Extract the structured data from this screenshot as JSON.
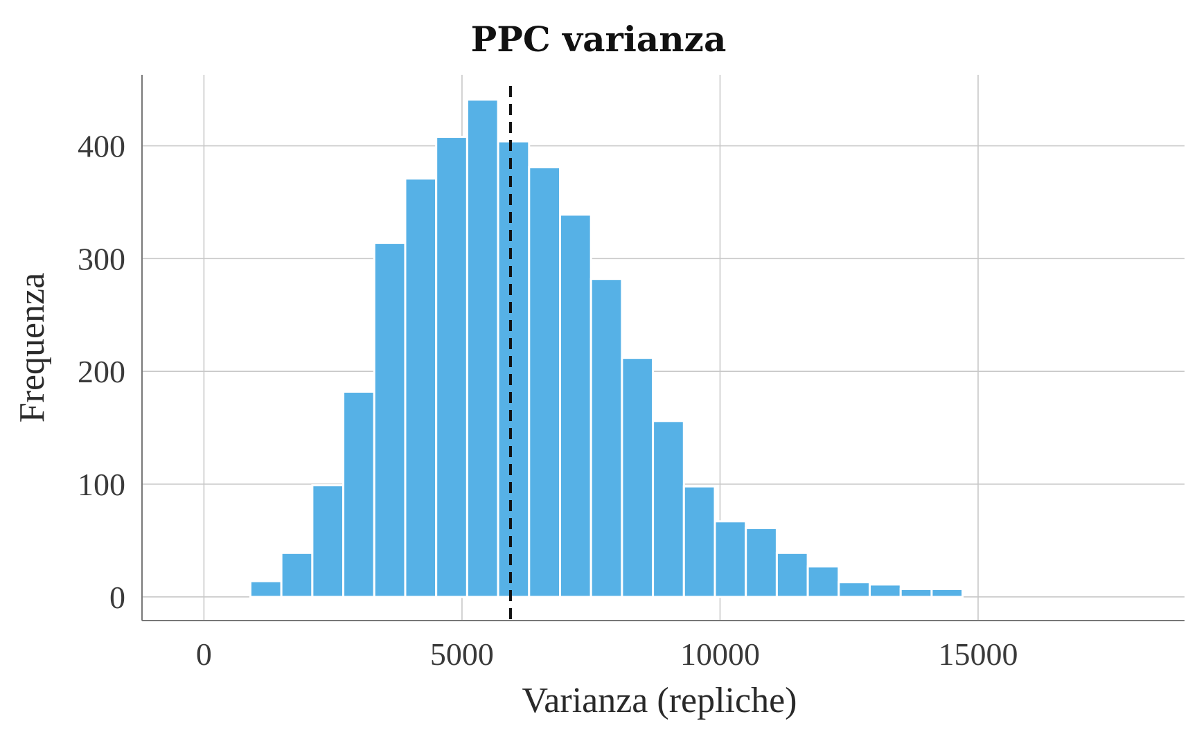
{
  "chart_data": {
    "type": "bar",
    "title": "PPC varianza",
    "xlabel": "Varianza (repliche)",
    "ylabel": "Frequenza",
    "bin_width": 600,
    "bins_start": 900,
    "values": [
      14,
      39,
      99,
      182,
      314,
      371,
      408,
      441,
      404,
      381,
      339,
      282,
      212,
      156,
      98,
      67,
      61,
      39,
      27,
      13,
      11,
      7,
      7
    ],
    "xlim": [
      -1200,
      19000
    ],
    "ylim": [
      -21,
      463
    ],
    "xticks": [
      "0",
      "5000",
      "10000",
      "15000"
    ],
    "xtick_values": [
      0,
      5000,
      10000,
      15000
    ],
    "yticks": [
      "0",
      "100",
      "200",
      "300",
      "400"
    ],
    "ytick_values": [
      0,
      100,
      200,
      300,
      400
    ],
    "reference_line": {
      "x": 5940,
      "style": "dashed"
    },
    "grid": true,
    "colors": {
      "bar": "#56b1e6",
      "bar_edge": "#ffffff",
      "reference": "#111111"
    }
  }
}
